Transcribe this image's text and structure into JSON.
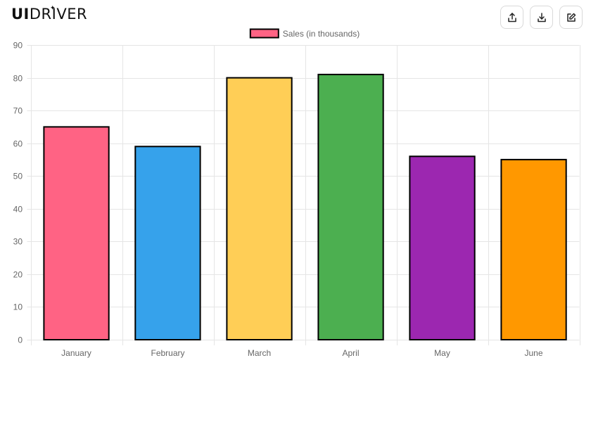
{
  "brand": {
    "name": "UIDRIVER",
    "bold_part": "UI",
    "thin_part": "DRIVER"
  },
  "toolbar": {
    "buttons": [
      {
        "icon": "share-icon"
      },
      {
        "icon": "download-icon"
      },
      {
        "icon": "edit-icon"
      }
    ]
  },
  "chart_data": {
    "type": "bar",
    "title": "",
    "xlabel": "",
    "ylabel": "",
    "categories": [
      "January",
      "February",
      "March",
      "April",
      "May",
      "June"
    ],
    "series": [
      {
        "name": "Sales (in thousands)",
        "values": [
          65,
          59,
          80,
          81,
          56,
          55
        ]
      }
    ],
    "bar_colors": [
      "#ff6384",
      "#36a2eb",
      "#ffce56",
      "#4caf50",
      "#9c27b0",
      "#ff9800"
    ],
    "border_color": "#000000",
    "ylim": [
      0,
      90
    ],
    "yticks": [
      0,
      10,
      20,
      30,
      40,
      50,
      60,
      70,
      80,
      90
    ],
    "grid": true,
    "legend": {
      "position": "top-center",
      "swatch_color": "#ff6384"
    }
  }
}
